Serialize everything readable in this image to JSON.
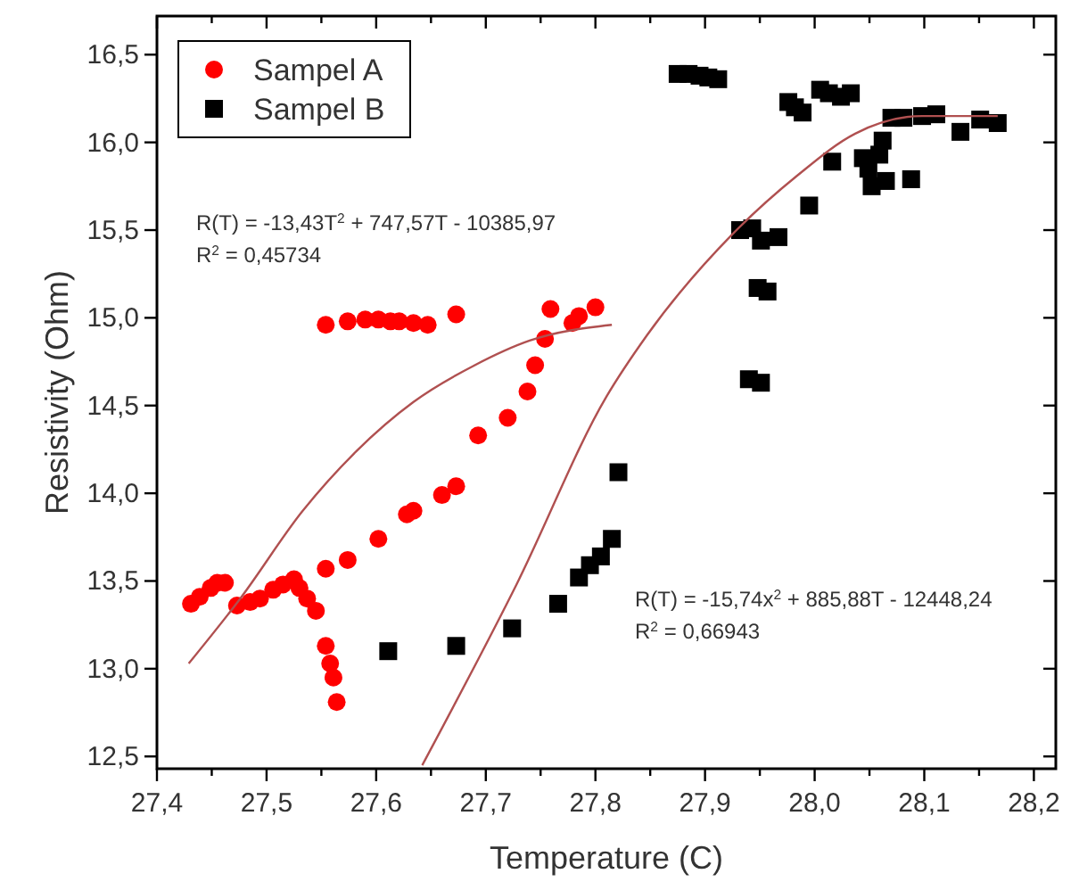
{
  "chart_data": {
    "type": "scatter",
    "xlabel": "Temperature (C)",
    "ylabel": "Resistivity (Ohm)",
    "xlim": [
      27.4,
      28.22
    ],
    "ylim": [
      12.43,
      16.72
    ],
    "xticks": [
      {
        "value": 27.4,
        "label": "27,4"
      },
      {
        "value": 27.45,
        "label": null
      },
      {
        "value": 27.5,
        "label": "27,5"
      },
      {
        "value": 27.55,
        "label": null
      },
      {
        "value": 27.6,
        "label": "27,6"
      },
      {
        "value": 27.65,
        "label": null
      },
      {
        "value": 27.7,
        "label": "27,7"
      },
      {
        "value": 27.75,
        "label": null
      },
      {
        "value": 27.8,
        "label": "27,8"
      },
      {
        "value": 27.85,
        "label": null
      },
      {
        "value": 27.9,
        "label": "27,9"
      },
      {
        "value": 27.95,
        "label": null
      },
      {
        "value": 28.0,
        "label": "28,0"
      },
      {
        "value": 28.05,
        "label": null
      },
      {
        "value": 28.1,
        "label": "28,1"
      },
      {
        "value": 28.15,
        "label": null
      },
      {
        "value": 28.2,
        "label": "28,2"
      }
    ],
    "yticks": [
      {
        "value": 12.5,
        "label": "12,5"
      },
      {
        "value": 13.0,
        "label": "13,0"
      },
      {
        "value": 13.5,
        "label": "13,5"
      },
      {
        "value": 14.0,
        "label": "14,0"
      },
      {
        "value": 14.5,
        "label": "14,5"
      },
      {
        "value": 15.0,
        "label": "15,0"
      },
      {
        "value": 15.5,
        "label": "15,5"
      },
      {
        "value": 16.0,
        "label": "16,0"
      },
      {
        "value": 16.5,
        "label": "16,5"
      }
    ],
    "legend": "top left",
    "grid": false,
    "annotations": [
      "R(T) = -13,43T$^{2}$ + 747,57T - 10385,97",
      "R$^{2}$ = 0,45734",
      "R(T) = -15,74x$^{2}$ + 885,88T - 12448,24",
      "R$^{2}$ = 0,66943"
    ],
    "series": [
      {
        "name": "Sampel A",
        "color": "#ff0000",
        "marker": "circle",
        "x": [
          27.431,
          27.439,
          27.449,
          27.455,
          27.462,
          27.473,
          27.485,
          27.494,
          27.506,
          27.515,
          27.525,
          27.53,
          27.537,
          27.545,
          27.554,
          27.558,
          27.561,
          27.564,
          27.554,
          27.574,
          27.602,
          27.628,
          27.634,
          27.66,
          27.673,
          27.693,
          27.72,
          27.738,
          27.745,
          27.754,
          27.759,
          27.779,
          27.785,
          27.8,
          27.554,
          27.574,
          27.59,
          27.602,
          27.613,
          27.621,
          27.634,
          27.647,
          27.673
        ],
        "values": [
          13.37,
          13.41,
          13.46,
          13.49,
          13.49,
          13.36,
          13.38,
          13.4,
          13.45,
          13.48,
          13.51,
          13.46,
          13.4,
          13.33,
          13.13,
          13.03,
          12.95,
          12.81,
          13.57,
          13.62,
          13.74,
          13.88,
          13.9,
          13.99,
          14.04,
          14.33,
          14.43,
          14.58,
          14.73,
          14.88,
          15.05,
          14.97,
          15.01,
          15.06,
          14.96,
          14.98,
          14.99,
          14.99,
          14.98,
          14.98,
          14.97,
          14.96,
          15.02
        ]
      },
      {
        "name": "Sampel B",
        "color": "#000000",
        "marker": "square",
        "x": [
          27.875,
          27.885,
          27.895,
          27.903,
          27.912,
          27.976,
          27.982,
          27.989,
          28.005,
          28.013,
          28.024,
          28.033,
          28.07,
          28.081,
          28.098,
          28.111,
          28.133,
          28.151,
          28.167,
          28.016,
          28.062,
          28.059,
          28.044,
          28.049,
          28.052,
          28.065,
          28.088,
          27.995,
          27.932,
          27.943,
          27.951,
          27.967,
          27.948,
          27.957,
          27.94,
          27.951,
          27.611,
          27.673,
          27.724,
          27.766,
          27.785,
          27.795,
          27.805,
          27.815,
          27.821
        ],
        "values": [
          16.39,
          16.39,
          16.38,
          16.37,
          16.36,
          16.23,
          16.2,
          16.17,
          16.3,
          16.28,
          16.26,
          16.28,
          16.14,
          16.14,
          16.15,
          16.16,
          16.06,
          16.13,
          16.11,
          15.89,
          16.01,
          15.93,
          15.91,
          15.85,
          15.75,
          15.78,
          15.79,
          15.64,
          15.5,
          15.51,
          15.44,
          15.46,
          15.17,
          15.15,
          14.65,
          14.63,
          13.1,
          13.13,
          13.23,
          13.37,
          13.52,
          13.59,
          13.64,
          13.74,
          14.12
        ]
      },
      {
        "type": "line",
        "color": "#b05050",
        "marker": "none",
        "line_style": "solid",
        "x": [
          27.429,
          27.476,
          27.533,
          27.582,
          27.634,
          27.69,
          27.74,
          27.815
        ],
        "values": [
          13.03,
          13.4,
          13.9,
          14.24,
          14.52,
          14.73,
          14.87,
          14.96
        ]
      },
      {
        "type": "line",
        "color": "#b05050",
        "marker": "none",
        "line_style": "solid",
        "x": [
          27.642,
          27.728,
          27.81,
          27.847,
          27.924,
          27.984,
          28.037,
          28.098,
          28.167
        ],
        "values": [
          12.45,
          13.48,
          14.55,
          14.9,
          15.47,
          15.81,
          16.05,
          16.15,
          16.15
        ]
      }
    ]
  }
}
